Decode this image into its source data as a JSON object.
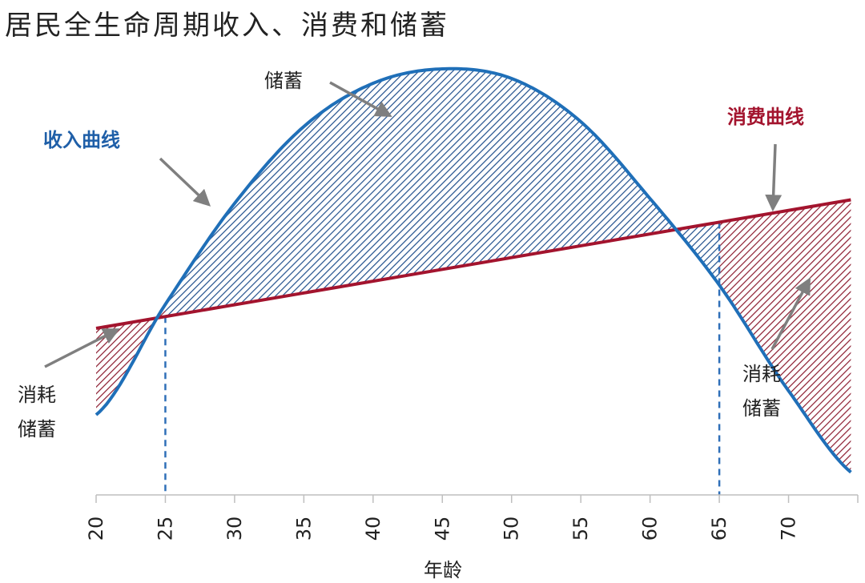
{
  "chart_data": {
    "type": "line",
    "title": "居民全生命周期收入、消费和储蓄",
    "xlabel": "年龄",
    "ylabel": "",
    "xlim": [
      20,
      75
    ],
    "x_ticks": [
      "20",
      "25",
      "30",
      "35",
      "40",
      "45",
      "50",
      "55",
      "60",
      "65",
      "70"
    ],
    "grid": false,
    "legend": "none",
    "series": [
      {
        "name": "收入曲线",
        "color": "#1f6fb8",
        "shape": "inverted-parabola",
        "x": [
          20,
          25,
          30,
          35,
          40,
          45,
          50,
          55,
          60,
          65,
          70,
          75
        ],
        "y": [
          0.17,
          0.4,
          0.61,
          0.77,
          0.86,
          0.89,
          0.87,
          0.78,
          0.62,
          0.44,
          0.22,
          0.04
        ]
      },
      {
        "name": "消费曲线",
        "color": "#a3142e",
        "shape": "linear",
        "x": [
          20,
          75
        ],
        "y": [
          0.35,
          0.62
        ]
      }
    ],
    "markers": {
      "retire_start_age": 25,
      "retire_end_age": 65,
      "style": "dashed",
      "color": "#2f6fb8"
    },
    "annotations": {
      "savings": "储蓄",
      "income_curve": "收入曲线",
      "consumption_curve": "消费曲线",
      "consume_savings_line1": "消耗",
      "consume_savings_line2": "储蓄"
    },
    "colors": {
      "savings_fill": "#1f4e8c",
      "dissave_fill": "#8b1a2e",
      "arrow": "#7f7f7f"
    }
  }
}
